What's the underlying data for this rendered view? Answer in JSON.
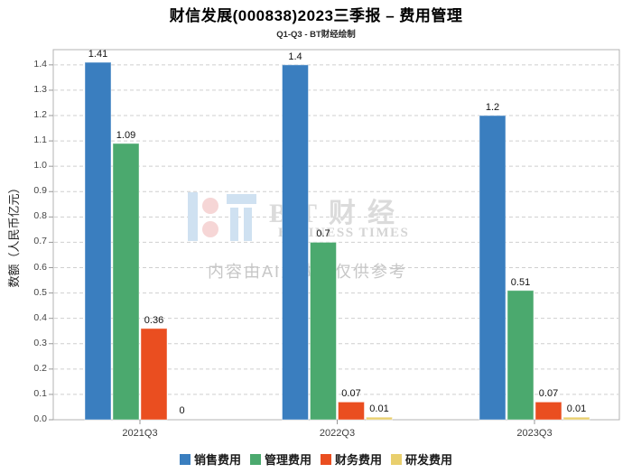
{
  "title": "财信发展(000838)2023三季报 – 费用管理",
  "subtitle": "Q1-Q3 - BT财经绘制",
  "watermark": {
    "brand_cn": "BT财经",
    "brand_en": "BUSINESS TIMES",
    "ai_notice": "内容由AI生成，仅供参考",
    "logo_blue": "#cfe1f1",
    "logo_pink": "#f6d6d6"
  },
  "axis_style": {
    "spine_color": "#b3b3b3",
    "grid_color": "#cfcfcf",
    "tick_color": "#999999",
    "tick_label_color": "#444444"
  },
  "chart_data": {
    "type": "bar",
    "title": "财信发展(000838)2023三季报 – 费用管理",
    "subtitle": "Q1-Q3 - BT财经绘制",
    "categories": [
      "2021Q3",
      "2022Q3",
      "2023Q3"
    ],
    "series": [
      {
        "name": "销售费用",
        "color": "#3a7ebf",
        "values": [
          1.41,
          1.4,
          1.2
        ],
        "labels": [
          "1.41",
          "1.4",
          "1.2"
        ]
      },
      {
        "name": "管理费用",
        "color": "#4ba96e",
        "values": [
          1.09,
          0.7,
          0.51
        ],
        "labels": [
          "1.09",
          "0.7",
          "0.51"
        ]
      },
      {
        "name": "财务费用",
        "color": "#ea4e20",
        "values": [
          0.36,
          0.07,
          0.07
        ],
        "labels": [
          "0.36",
          "0.07",
          "0.07"
        ]
      },
      {
        "name": "研发费用",
        "color": "#e9cf6d",
        "values": [
          0.0,
          0.01,
          0.01
        ],
        "labels": [
          "0",
          "0.01",
          "0.01"
        ]
      }
    ],
    "xlabel": "",
    "ylabel": "数额（人民币亿元）",
    "ylim": [
      0,
      1.46
    ],
    "yticks": [
      "0.0",
      "0.1",
      "0.2",
      "0.3",
      "0.4",
      "0.5",
      "0.6",
      "0.7",
      "0.8",
      "0.9",
      "1.0",
      "1.1",
      "1.2",
      "1.3",
      "1.4"
    ],
    "grid": "horizontal-dashed",
    "legend_position": "bottom-center"
  }
}
